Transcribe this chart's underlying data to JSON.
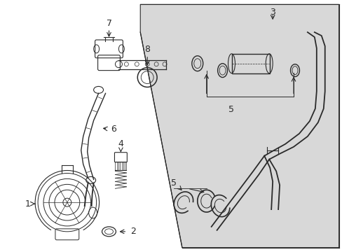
{
  "bg_color": "#ffffff",
  "line_color": "#2a2a2a",
  "diagram_bg": "#d8d8d8",
  "figsize": [
    4.89,
    3.6
  ],
  "dpi": 100
}
